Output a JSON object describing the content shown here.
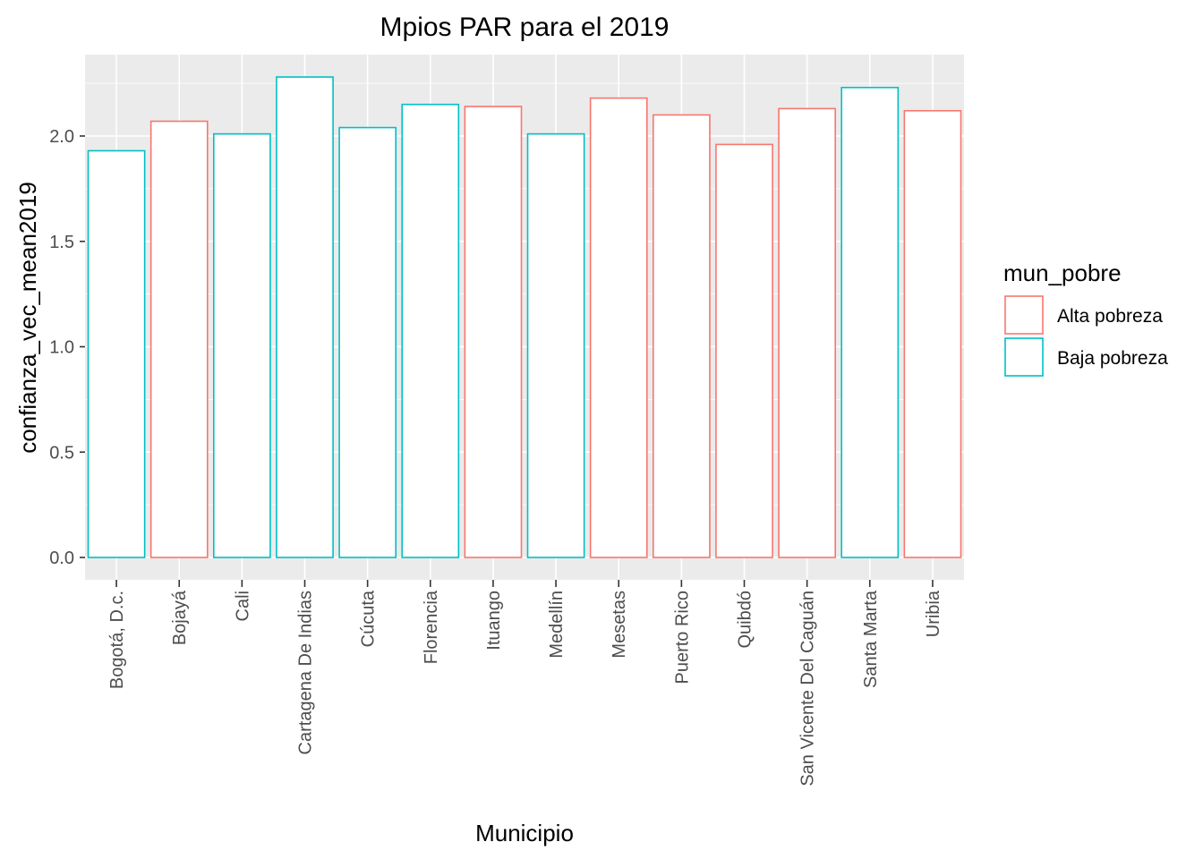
{
  "chart_data": {
    "type": "bar",
    "title": "Mpios PAR para el 2019",
    "xlabel": "Municipio",
    "ylabel": "confianza_vec_mean2019",
    "ylim": [
      0,
      2.3
    ],
    "yticks": [
      "0.0",
      "0.5",
      "1.0",
      "1.5",
      "2.0"
    ],
    "grid": true,
    "legend_position": "right",
    "legend": {
      "title": "mun_pobre",
      "entries": [
        {
          "label": "Alta pobreza",
          "color": "#F8766D"
        },
        {
          "label": "Baja pobreza",
          "color": "#00BFC4"
        }
      ]
    },
    "categories": [
      "Bogotá, D.c.",
      "Bojayá",
      "Cali",
      "Cartagena De Indias",
      "Cúcuta",
      "Florencia",
      "Ituango",
      "Medellín",
      "Mesetas",
      "Puerto Rico",
      "Quibdó",
      "San Vicente Del Caguán",
      "Santa Marta",
      "Uribia"
    ],
    "values": [
      1.93,
      2.07,
      2.01,
      2.28,
      2.04,
      2.15,
      2.14,
      2.01,
      2.18,
      2.1,
      1.96,
      2.13,
      2.23,
      2.12
    ],
    "groups": [
      "Baja pobreza",
      "Alta pobreza",
      "Baja pobreza",
      "Baja pobreza",
      "Baja pobreza",
      "Baja pobreza",
      "Alta pobreza",
      "Baja pobreza",
      "Alta pobreza",
      "Alta pobreza",
      "Alta pobreza",
      "Alta pobreza",
      "Baja pobreza",
      "Alta pobreza"
    ]
  },
  "colors": {
    "panel_background": "#EBEBEB",
    "grid": "#FFFFFF",
    "alta": "#F8766D",
    "baja": "#00BFC4"
  }
}
